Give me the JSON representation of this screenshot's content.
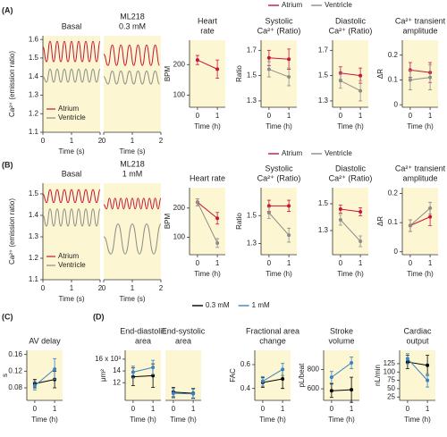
{
  "panel_labels": [
    "(A)",
    "(B)",
    "(C)",
    "(D)"
  ],
  "chart_data": [
    {
      "type": "line",
      "title": [
        "Basal"
      ],
      "xlabel": "Time (s)",
      "ylabel": "Ca²⁺ (emission ratio)",
      "xlim": [
        0,
        2
      ],
      "xticks": [
        0,
        1,
        2
      ],
      "ylim": [
        1.1,
        1.62
      ],
      "yticks": [
        1.1,
        1.2,
        1.3,
        1.4,
        1.5,
        1.6
      ],
      "legend": "lower left",
      "series": [
        {
          "name": "Atrium",
          "color": "#c8143c",
          "x": [
            0,
            0.125,
            0.25,
            0.375,
            0.5,
            0.625,
            0.75,
            0.875,
            1,
            1.125,
            1.25,
            1.375,
            1.5,
            1.625,
            1.75,
            1.875,
            2
          ],
          "values": [
            1.56,
            1.48,
            1.59,
            1.48,
            1.59,
            1.48,
            1.59,
            1.48,
            1.59,
            1.48,
            1.59,
            1.48,
            1.59,
            1.48,
            1.59,
            1.48,
            1.59
          ]
        },
        {
          "name": "Ventricle",
          "color": "#8c8c8c",
          "x": [
            0,
            0.125,
            0.25,
            0.375,
            0.5,
            0.625,
            0.75,
            0.875,
            1,
            1.125,
            1.25,
            1.375,
            1.5,
            1.625,
            1.75,
            1.875,
            2
          ],
          "values": [
            1.4,
            1.37,
            1.44,
            1.37,
            1.44,
            1.37,
            1.44,
            1.37,
            1.44,
            1.37,
            1.44,
            1.37,
            1.44,
            1.37,
            1.44,
            1.37,
            1.44
          ]
        }
      ]
    },
    {
      "type": "line",
      "title": [
        "ML218",
        "0.3 mM"
      ],
      "xlabel": "Time (s)",
      "xlim": [
        0,
        2
      ],
      "xticks": [
        0,
        1,
        2
      ],
      "ylim": [
        1.1,
        1.62
      ],
      "series": [
        {
          "color": "#c8143c",
          "x": [
            0,
            0.15,
            0.3,
            0.45,
            0.6,
            0.75,
            0.9,
            1.05,
            1.2,
            1.35,
            1.5,
            1.65,
            1.8,
            1.95
          ],
          "values": [
            1.52,
            1.46,
            1.57,
            1.46,
            1.57,
            1.46,
            1.57,
            1.46,
            1.57,
            1.46,
            1.57,
            1.46,
            1.57,
            1.46
          ]
        },
        {
          "color": "#8c8c8c",
          "x": [
            0,
            0.15,
            0.3,
            0.45,
            0.6,
            0.75,
            0.9,
            1.05,
            1.2,
            1.35,
            1.5,
            1.65,
            1.8,
            1.95
          ],
          "values": [
            1.4,
            1.36,
            1.43,
            1.36,
            1.43,
            1.36,
            1.43,
            1.36,
            1.43,
            1.36,
            1.43,
            1.36,
            1.43,
            1.36
          ]
        }
      ]
    },
    {
      "type": "errorbar",
      "title": [
        "Heart",
        "rate"
      ],
      "ylabel": "BPM",
      "xlabel": "Time (h)",
      "xlim": [
        -0.4,
        1.4
      ],
      "xticks": [
        0,
        1
      ],
      "ylim": [
        60,
        280
      ],
      "yticks": [
        100,
        200
      ],
      "series": [
        {
          "color": "#c8143c",
          "values": [
            215,
            185
          ],
          "errors": [
            15,
            30
          ]
        }
      ]
    },
    {
      "type": "errorbar",
      "title": [
        "Systolic",
        "Ca²⁺ (Ratio)"
      ],
      "ylabel": "Ratio",
      "xlabel": "Time (h)",
      "xlim": [
        -0.4,
        1.4
      ],
      "xticks": [
        0,
        1
      ],
      "ylim": [
        1.25,
        1.78
      ],
      "yticks": [
        1.3,
        1.5,
        1.7
      ],
      "legend": "top",
      "series": [
        {
          "name": "Atrium",
          "color": "#c8143c",
          "values": [
            1.64,
            1.63
          ],
          "errors": [
            0.06,
            0.08
          ]
        },
        {
          "name": "Ventricle",
          "color": "#8c8c8c",
          "values": [
            1.55,
            1.49
          ],
          "errors": [
            0.06,
            0.07
          ]
        }
      ]
    },
    {
      "type": "errorbar",
      "title": [
        "Diastolic",
        "Ca²⁺ (Ratio)"
      ],
      "xlabel": "Time (h)",
      "xlim": [
        -0.4,
        1.4
      ],
      "xticks": [
        0,
        1
      ],
      "ylim": [
        1.25,
        1.78
      ],
      "yticks": [
        1.3,
        1.5,
        1.7
      ],
      "series": [
        {
          "color": "#c8143c",
          "values": [
            1.52,
            1.5
          ],
          "errors": [
            0.05,
            0.06
          ]
        },
        {
          "color": "#8c8c8c",
          "values": [
            1.46,
            1.38
          ],
          "errors": [
            0.06,
            0.08
          ]
        }
      ]
    },
    {
      "type": "errorbar",
      "title": [
        "Ca²⁺ transient",
        "amplitude"
      ],
      "ylabel": "ΔR",
      "xlabel": "Time (h)",
      "xlim": [
        -0.4,
        1.4
      ],
      "xticks": [
        0,
        1
      ],
      "ylim": [
        -0.01,
        0.26
      ],
      "yticks": [
        0,
        0.1,
        0.2
      ],
      "series": [
        {
          "color": "#c8143c",
          "values": [
            0.14,
            0.13
          ],
          "errors": [
            0.03,
            0.04
          ]
        },
        {
          "color": "#8c8c8c",
          "values": [
            0.1,
            0.11
          ],
          "errors": [
            0.04,
            0.05
          ]
        }
      ]
    },
    {
      "type": "line",
      "title": [
        "Basal"
      ],
      "xlabel": "Time (s)",
      "ylabel": "Ca²⁺ (emission ratio)",
      "xlim": [
        0,
        2
      ],
      "xticks": [
        0,
        1,
        2
      ],
      "ylim": [
        1.1,
        1.55
      ],
      "yticks": [
        1.1,
        1.2,
        1.3,
        1.4,
        1.5
      ],
      "legend": "lower left",
      "series": [
        {
          "name": "Atrium",
          "color": "#c8143c",
          "x": [
            0,
            0.125,
            0.25,
            0.375,
            0.5,
            0.625,
            0.75,
            0.875,
            1,
            1.125,
            1.25,
            1.375,
            1.5,
            1.625,
            1.75,
            1.875,
            2
          ],
          "values": [
            1.5,
            1.46,
            1.52,
            1.46,
            1.52,
            1.46,
            1.52,
            1.46,
            1.52,
            1.46,
            1.52,
            1.46,
            1.52,
            1.46,
            1.52,
            1.46,
            1.52
          ]
        },
        {
          "name": "Ventricle",
          "color": "#8c8c8c",
          "x": [
            0,
            0.125,
            0.25,
            0.375,
            0.5,
            0.625,
            0.75,
            0.875,
            1,
            1.125,
            1.25,
            1.375,
            1.5,
            1.625,
            1.75,
            1.875,
            2
          ],
          "values": [
            1.4,
            1.35,
            1.43,
            1.35,
            1.43,
            1.35,
            1.43,
            1.35,
            1.43,
            1.35,
            1.43,
            1.35,
            1.43,
            1.35,
            1.43,
            1.35,
            1.43
          ]
        }
      ]
    },
    {
      "type": "line",
      "title": [
        "ML218",
        "1 mM"
      ],
      "xlabel": "Time (s)",
      "xlim": [
        0,
        2
      ],
      "xticks": [
        0,
        1,
        2
      ],
      "ylim": [
        1.1,
        1.55
      ],
      "series": [
        {
          "color": "#c8143c",
          "x": [
            0,
            0.1,
            0.2,
            0.3,
            0.4,
            0.5,
            0.6,
            0.7,
            0.8,
            0.9,
            1,
            1.1,
            1.2,
            1.3,
            1.4,
            1.5,
            1.6,
            1.7,
            1.8,
            1.9,
            2
          ],
          "values": [
            1.45,
            1.43,
            1.48,
            1.43,
            1.48,
            1.43,
            1.48,
            1.43,
            1.48,
            1.43,
            1.48,
            1.43,
            1.48,
            1.43,
            1.48,
            1.43,
            1.48,
            1.43,
            1.48,
            1.43,
            1.48
          ]
        },
        {
          "color": "#8c8c8c",
          "x": [
            0,
            0.25,
            0.5,
            0.75,
            1,
            1.25,
            1.5,
            1.75,
            2
          ],
          "values": [
            1.3,
            1.22,
            1.36,
            1.22,
            1.36,
            1.22,
            1.36,
            1.22,
            1.36
          ]
        }
      ]
    },
    {
      "type": "errorbar",
      "title": [
        "Heart rate"
      ],
      "ylabel": "BPM",
      "xlabel": "Time (h)",
      "xlim": [
        -0.4,
        1.4
      ],
      "xticks": [
        0,
        1
      ],
      "ylim": [
        40,
        270
      ],
      "yticks": [
        100,
        200
      ],
      "series": [
        {
          "color": "#c8143c",
          "values": [
            220,
            165
          ],
          "errors": [
            12,
            20
          ]
        },
        {
          "color": "#8c8c8c",
          "values": [
            220,
            80
          ],
          "errors": [
            12,
            15
          ]
        }
      ]
    },
    {
      "type": "errorbar",
      "title": [
        "Systolic",
        "Ca²⁺ (Ratio)"
      ],
      "ylabel": "Ratio",
      "xlabel": "Time (h)",
      "xlim": [
        -0.4,
        1.4
      ],
      "xticks": [
        0,
        1
      ],
      "ylim": [
        1.22,
        1.7
      ],
      "yticks": [
        1.3,
        1.5
      ],
      "legend": "top",
      "series": [
        {
          "name": "Atrium",
          "color": "#c8143c",
          "values": [
            1.57,
            1.57
          ],
          "errors": [
            0.04,
            0.04
          ]
        },
        {
          "name": "Ventricle",
          "color": "#8c8c8c",
          "values": [
            1.52,
            1.36
          ],
          "errors": [
            0.04,
            0.05
          ]
        }
      ]
    },
    {
      "type": "errorbar",
      "title": [
        "Diastolic",
        "Ca²⁺ (Ratio)"
      ],
      "xlabel": "Time (h)",
      "xlim": [
        -0.4,
        1.4
      ],
      "xticks": [
        0,
        1
      ],
      "ylim": [
        1.12,
        1.62
      ],
      "yticks": [
        1.3,
        1.5
      ],
      "series": [
        {
          "color": "#c8143c",
          "values": [
            1.46,
            1.44
          ],
          "errors": [
            0.03,
            0.03
          ]
        },
        {
          "color": "#8c8c8c",
          "values": [
            1.38,
            1.22
          ],
          "errors": [
            0.04,
            0.04
          ]
        }
      ]
    },
    {
      "type": "errorbar",
      "title": [
        "Ca²⁺ transient",
        "amplitude"
      ],
      "ylabel": "ΔR",
      "xlabel": "Time (h)",
      "xlim": [
        -0.4,
        1.4
      ],
      "xticks": [
        0,
        1
      ],
      "ylim": [
        -0.01,
        0.22
      ],
      "yticks": [
        0,
        0.1,
        0.2
      ],
      "series": [
        {
          "color": "#c8143c",
          "values": [
            0.09,
            0.12
          ],
          "errors": [
            0.02,
            0.03
          ]
        },
        {
          "color": "#8c8c8c",
          "values": [
            0.09,
            0.15
          ],
          "errors": [
            0.02,
            0.02
          ]
        }
      ]
    },
    {
      "type": "errorbar",
      "title": [
        "AV delay"
      ],
      "ylabel": "s",
      "xlabel": "Time (h)",
      "xlim": [
        -0.4,
        1.4
      ],
      "xticks": [
        0,
        1
      ],
      "ylim": [
        0.05,
        0.17
      ],
      "yticks": [
        0.08,
        0.12,
        0.16
      ],
      "legend": "top",
      "series": [
        {
          "name": "0.3 mM",
          "color": "#000000",
          "values": [
            0.09,
            0.1
          ],
          "errors": [
            0.01,
            0.02
          ]
        },
        {
          "name": "1 mM",
          "color": "#3b82c4",
          "values": [
            0.085,
            0.125
          ],
          "errors": [
            0.01,
            0.025
          ]
        }
      ]
    },
    {
      "type": "errorbar",
      "title": [
        "End-diastolic",
        "area"
      ],
      "ylabel": "μm²",
      "xlabel": "Time (h)",
      "xlim": [
        -0.4,
        1.4
      ],
      "xticks": [
        0,
        1
      ],
      "ylim": [
        9,
        17.5
      ],
      "yticks": [
        12,
        14,
        {
          "value": 16,
          "label": "16 x 10³"
        }
      ],
      "series": [
        {
          "color": "#000000",
          "values": [
            13,
            13.2
          ],
          "errors": [
            1.5,
            2
          ]
        },
        {
          "color": "#3b82c4",
          "values": [
            13.8,
            14.6
          ],
          "errors": [
            1,
            1.2
          ]
        }
      ]
    },
    {
      "type": "errorbar",
      "title": [
        "End-systolic",
        "area"
      ],
      "xlabel": "Time (h)",
      "xlim": [
        -0.4,
        1.4
      ],
      "xticks": [
        0,
        1
      ],
      "ylim": [
        9,
        17.5
      ],
      "series": [
        {
          "color": "#000000",
          "values": [
            10.4,
            10.2
          ],
          "errors": [
            0.8,
            0.8
          ]
        },
        {
          "color": "#3b82c4",
          "values": [
            10.2,
            10.1
          ],
          "errors": [
            0.8,
            0.8
          ]
        }
      ]
    },
    {
      "type": "errorbar",
      "title": [
        "Fractional area",
        "change"
      ],
      "ylabel": "FAC",
      "xlabel": "Time (h)",
      "xlim": [
        -0.4,
        1.4
      ],
      "xticks": [
        0,
        1
      ],
      "ylim": [
        0.3,
        0.72
      ],
      "yticks": [
        0.4,
        0.6
      ],
      "series": [
        {
          "color": "#000000",
          "values": [
            0.45,
            0.48
          ],
          "errors": [
            0.04,
            0.08
          ]
        },
        {
          "color": "#3b82c4",
          "values": [
            0.46,
            0.56
          ],
          "errors": [
            0.04,
            0.05
          ]
        }
      ]
    },
    {
      "type": "errorbar",
      "title": [
        "Stroke",
        "volume"
      ],
      "ylabel": "pL/beat",
      "xlabel": "Time (h)",
      "xlim": [
        -0.4,
        1.4
      ],
      "xticks": [
        0,
        1
      ],
      "ylim": [
        480,
        1000
      ],
      "yticks": [
        600,
        800
      ],
      "series": [
        {
          "color": "#000000",
          "values": [
            580,
            590
          ],
          "errors": [
            70,
            130
          ]
        },
        {
          "color": "#3b82c4",
          "values": [
            720,
            870
          ],
          "errors": [
            60,
            60
          ]
        }
      ]
    },
    {
      "type": "errorbar",
      "title": [
        "Cardiac",
        "output"
      ],
      "ylabel": "nL/min",
      "xlabel": "Time (h)",
      "xlim": [
        -0.4,
        1.4
      ],
      "xticks": [
        0,
        1
      ],
      "ylim": [
        15,
        165
      ],
      "yticks": [
        25,
        50,
        75,
        100,
        125
      ],
      "series": [
        {
          "color": "#000000",
          "values": [
            130,
            120
          ],
          "errors": [
            20,
            30
          ]
        },
        {
          "color": "#3b82c4",
          "values": [
            140,
            75
          ],
          "errors": [
            15,
            20
          ]
        }
      ]
    }
  ]
}
